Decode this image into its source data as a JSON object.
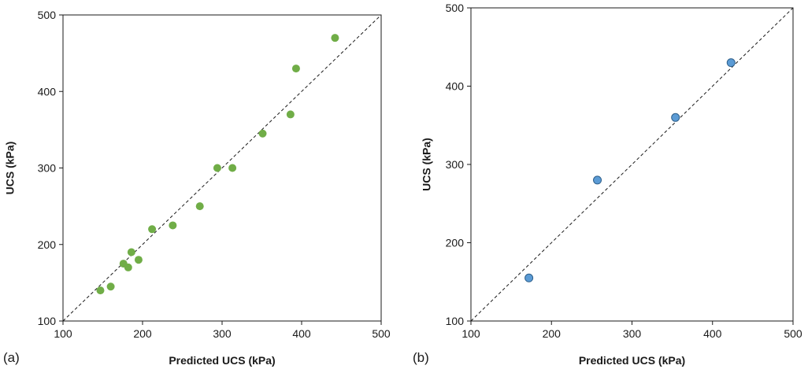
{
  "chart_data": [
    {
      "type": "scatter",
      "panel_label": "(a)",
      "xlabel": "Predicted UCS (kPa)",
      "ylabel": "UCS (kPa)",
      "xlim": [
        100,
        500
      ],
      "ylim": [
        100,
        500
      ],
      "xticks": [
        100,
        200,
        300,
        400,
        500
      ],
      "yticks": [
        100,
        200,
        300,
        400,
        500
      ],
      "reference_line": "y = x (dashed)",
      "marker_color": "#70ad47",
      "grid": false,
      "points": [
        {
          "x": 147,
          "y": 140
        },
        {
          "x": 160,
          "y": 145
        },
        {
          "x": 176,
          "y": 175
        },
        {
          "x": 182,
          "y": 170
        },
        {
          "x": 186,
          "y": 190
        },
        {
          "x": 195,
          "y": 180
        },
        {
          "x": 212,
          "y": 220
        },
        {
          "x": 238,
          "y": 225
        },
        {
          "x": 272,
          "y": 250
        },
        {
          "x": 294,
          "y": 300
        },
        {
          "x": 313,
          "y": 300
        },
        {
          "x": 351,
          "y": 345
        },
        {
          "x": 386,
          "y": 370
        },
        {
          "x": 393,
          "y": 430
        },
        {
          "x": 442,
          "y": 470
        }
      ]
    },
    {
      "type": "scatter",
      "panel_label": "(b)",
      "xlabel": "Predicted UCS (kPa)",
      "ylabel": "UCS (kPa)",
      "xlim": [
        100,
        500
      ],
      "ylim": [
        100,
        500
      ],
      "xticks": [
        100,
        200,
        300,
        400,
        500
      ],
      "yticks": [
        100,
        200,
        300,
        400,
        500
      ],
      "reference_line": "y = x (dashed)",
      "marker_color": "#5b9bd5",
      "marker_edge": "#2e5f8a",
      "grid": false,
      "points": [
        {
          "x": 172,
          "y": 155
        },
        {
          "x": 257,
          "y": 280
        },
        {
          "x": 354,
          "y": 360
        },
        {
          "x": 423,
          "y": 430
        }
      ]
    }
  ]
}
